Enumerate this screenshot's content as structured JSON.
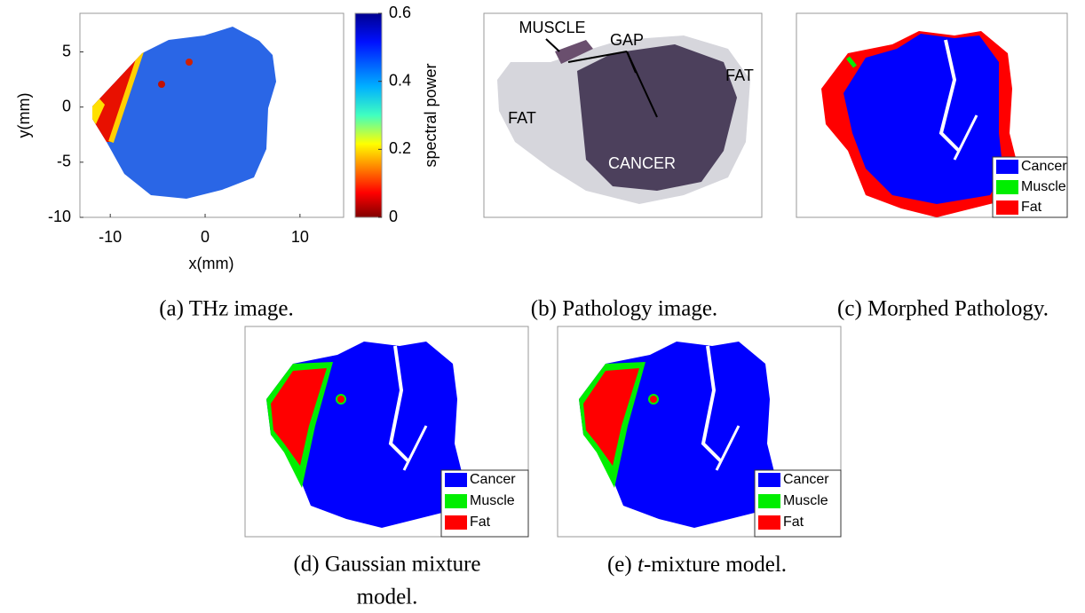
{
  "thz": {
    "xlabel": "x(mm)",
    "ylabel": "y(mm)",
    "xlim": [
      -13.2,
      14.6
    ],
    "ylim": [
      -10,
      8.5
    ],
    "xticks": [
      -10,
      0,
      10
    ],
    "yticks": [
      -10,
      -5,
      0,
      5
    ],
    "colorbar": {
      "label": "spectral power",
      "lim": [
        0,
        0.6
      ],
      "ticks": [
        0,
        0.2,
        0.4,
        0.6
      ]
    }
  },
  "pathology": {
    "labels": [
      "MUSCLE",
      "GAP",
      "FAT",
      "FAT",
      "CANCER"
    ]
  },
  "legend": [
    {
      "name": "Cancer",
      "color": "#0000ff"
    },
    {
      "name": "Muscle",
      "color": "#00ee00"
    },
    {
      "name": "Fat",
      "color": "#ff0000"
    }
  ],
  "captions": {
    "a": "(a) THz image.",
    "b": "(b) Pathology image.",
    "c": "(c) Morphed Pathology.",
    "d": [
      "(d) Gaussian mixture",
      "model."
    ],
    "e": [
      "(e)",
      "t",
      "-mixture model."
    ]
  }
}
